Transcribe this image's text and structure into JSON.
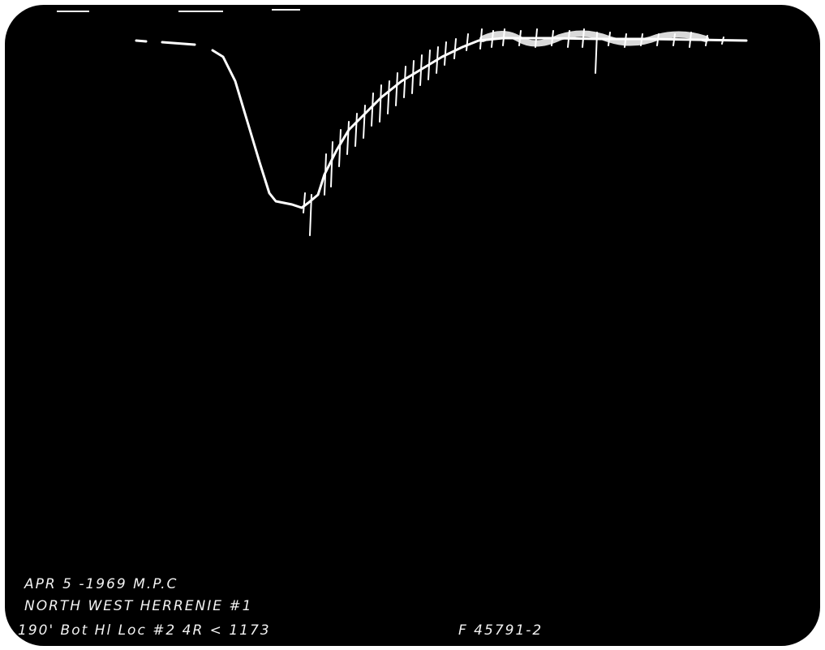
{
  "annotations": {
    "line1": "APR 5 -1969  M.P.C",
    "line2": "NORTH WEST  HERRENIE #1",
    "line3": "190' Bot Hl Loc #2 4R < 1173",
    "code": "F 45791-2"
  }
}
